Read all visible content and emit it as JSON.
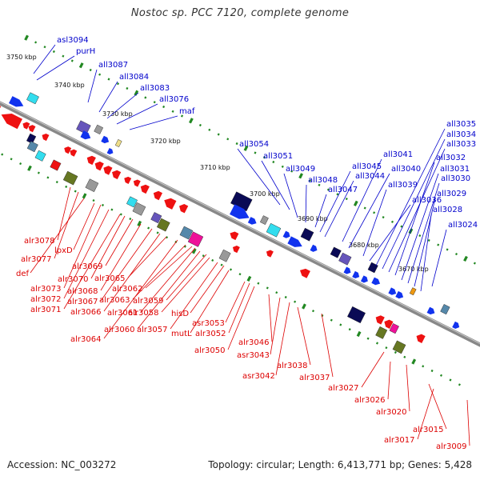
{
  "title": "Nostoc sp. PCC 7120, complete genome",
  "footer": {
    "accession": "Accession: NC_003272",
    "summary": "Topology: circular; Length: 6,413,771 bp; Genes: 5,428"
  },
  "colors": {
    "forward_label": "#0000cc",
    "reverse_label": "#dd0000",
    "backbone": "#888888",
    "tick_dots": "#228822"
  },
  "kbp_ticks": [
    "3750 kbp",
    "3740 kbp",
    "3730 kbp",
    "3720 kbp",
    "3710 kbp",
    "3700 kbp",
    "3690 kbp",
    "3680 kbp",
    "3670 kbp"
  ],
  "forward_genes": [
    "asl3094",
    "purH",
    "all3087",
    "all3084",
    "all3083",
    "all3076",
    "maf",
    "all3054",
    "all3051",
    "all3049",
    "all3048",
    "all3047",
    "all3045",
    "all3044",
    "all3041",
    "all3040",
    "all3039",
    "all3036",
    "all3035",
    "all3034",
    "all3033",
    "all3032",
    "all3031",
    "all3030",
    "all3029",
    "all3028",
    "all3024"
  ],
  "reverse_genes": [
    "alr3078",
    "alr3077",
    "def",
    "lpxD",
    "alr3073",
    "alr3072",
    "alr3071",
    "alr3070",
    "alr3069",
    "alr3068",
    "alr3067",
    "alr3066",
    "alr3065",
    "alr3064",
    "alr3063",
    "alr3062",
    "alr3061",
    "alr3060",
    "alr3059",
    "alr3058",
    "alr3057",
    "hisD",
    "mutL",
    "asr3053",
    "alr3052",
    "alr3050",
    "alr3046",
    "asr3043",
    "asr3042",
    "alr3038",
    "alr3037",
    "alr3027",
    "alr3026",
    "alr3020",
    "alr3015",
    "alr3017",
    "alr3009"
  ]
}
